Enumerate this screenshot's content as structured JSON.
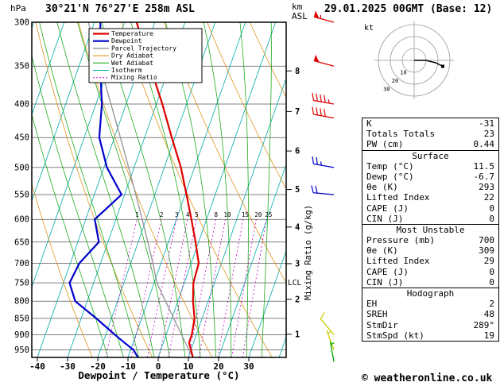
{
  "header": {
    "pressure_unit": "hPa",
    "station_title": "30°21'N 76°27'E 258m ASL",
    "altitude_axis_label": "km\nASL",
    "datetime": "29.01.2025 00GMT (Base: 12)"
  },
  "footer": {
    "copyright": "© weatheronline.co.uk"
  },
  "axes": {
    "pressure_ticks": [
      300,
      350,
      400,
      450,
      500,
      550,
      600,
      650,
      700,
      750,
      800,
      850,
      900,
      950
    ],
    "temp_ticks": [
      -40,
      -30,
      -20,
      -10,
      0,
      10,
      20,
      30
    ],
    "xlabel": "Dewpoint / Temperature (°C)",
    "km_ticks": [
      1,
      2,
      3,
      4,
      5,
      6,
      7,
      8
    ],
    "mixing_ratio_label": "Mixing Ratio (g/kg)",
    "mixing_ratio_values": [
      1,
      2,
      3,
      4,
      5,
      8,
      10,
      15,
      20,
      25
    ],
    "lcl_label": "LCL"
  },
  "legend": {
    "items": [
      {
        "label": "Temperature",
        "color": "#dd0000",
        "width": 2.2,
        "dashed": false
      },
      {
        "label": "Dewpoint",
        "color": "#0000cc",
        "width": 2.2,
        "dashed": false
      },
      {
        "label": "Parcel Trajectory",
        "color": "#999999",
        "width": 1.5,
        "dashed": false
      },
      {
        "label": "Dry Adiabat",
        "color": "#dd8800",
        "width": 1,
        "dashed": false
      },
      {
        "label": "Wet Adiabat",
        "color": "#00a000",
        "width": 1,
        "dashed": false
      },
      {
        "label": "Isotherm",
        "color": "#00aaaa",
        "width": 1,
        "dashed": false
      },
      {
        "label": "Mixing Ratio",
        "color": "#cc00cc",
        "width": 1,
        "dashed": true
      }
    ]
  },
  "colors": {
    "temperature": "#dd0000",
    "dewpoint": "#0000cc",
    "parcel": "#999999",
    "dry_adiabat": "#dd8800",
    "wet_adiabat": "#00a000",
    "isotherm": "#00aaaa",
    "mixing_ratio": "#cc00cc",
    "grid": "#000000"
  },
  "chart_data": {
    "type": "line",
    "subtype": "skew-t-log-p-sounding",
    "title": "30°21'N 76°27'E 258m ASL",
    "xlabel": "Dewpoint / Temperature (°C)",
    "ylabel": "hPa",
    "pressure_range": [
      300,
      975
    ],
    "temp_axis_range": [
      -40,
      38
    ],
    "isotherm_step_c": 10,
    "pressure_levels": [
      975,
      950,
      925,
      900,
      850,
      800,
      750,
      700,
      650,
      600,
      550,
      500,
      450,
      400,
      350,
      300
    ],
    "series": [
      {
        "name": "Temperature",
        "color": "#dd0000",
        "values": [
          11.5,
          10.0,
          8.5,
          8.5,
          7.5,
          5.0,
          3.0,
          2.5,
          -1.0,
          -5.0,
          -9.5,
          -14.5,
          -21.0,
          -28.0,
          -36.5,
          -46.0
        ]
      },
      {
        "name": "Dewpoint",
        "color": "#0000cc",
        "values": [
          -6.7,
          -9.0,
          -13.0,
          -17.0,
          -25.0,
          -34.0,
          -38.0,
          -37.0,
          -33.0,
          -37.0,
          -31.0,
          -39.0,
          -45.0,
          -48.0,
          -53.0,
          -58.0
        ]
      },
      {
        "name": "Parcel Trajectory",
        "color": "#999999",
        "values": [
          11.5,
          9.4,
          7.2,
          5.1,
          0.6,
          -4.1,
          -9.1,
          -12.7,
          -16.8,
          -21.3,
          -26.3,
          -31.8,
          -38.0,
          -45.0,
          -53.0,
          -62.0
        ]
      }
    ],
    "lcl_pressure_hpa": 750,
    "mixing_ratio_lines_g_kg": [
      1,
      2,
      3,
      4,
      5,
      8,
      10,
      15,
      20,
      25
    ]
  },
  "wind_barbs": [
    {
      "pressure": 300,
      "dir": 285,
      "speed_kt": 55,
      "color": "#dd0000"
    },
    {
      "pressure": 350,
      "dir": 285,
      "speed_kt": 50,
      "color": "#dd0000"
    },
    {
      "pressure": 400,
      "dir": 280,
      "speed_kt": 45,
      "color": "#dd0000"
    },
    {
      "pressure": 420,
      "dir": 280,
      "speed_kt": 40,
      "color": "#dd0000"
    },
    {
      "pressure": 500,
      "dir": 280,
      "speed_kt": 25,
      "color": "#0000cc"
    },
    {
      "pressure": 550,
      "dir": 275,
      "speed_kt": 20,
      "color": "#0000cc"
    },
    {
      "pressure": 900,
      "dir": 320,
      "speed_kt": 10,
      "color": "#cccc00"
    },
    {
      "pressure": 950,
      "dir": 340,
      "speed_kt": 5,
      "color": "#cccc00"
    },
    {
      "pressure": 990,
      "dir": 350,
      "speed_kt": 5,
      "color": "#00aa00"
    }
  ],
  "hodograph": {
    "unit_label": "kt",
    "ring_spacing_kt": 10,
    "ring_labels": [
      10,
      20,
      30
    ],
    "trace_uv_kt": [
      [
        0,
        0
      ],
      [
        10,
        0
      ],
      [
        18,
        -2
      ],
      [
        24,
        -5
      ]
    ],
    "storm_dir_deg": 289,
    "storm_speed_kt": 19
  },
  "stats": {
    "sections": [
      {
        "rows": [
          {
            "label": "K",
            "value": "-31"
          },
          {
            "label": "Totals Totals",
            "value": "23"
          },
          {
            "label": "PW (cm)",
            "value": "0.44"
          }
        ]
      },
      {
        "header": "Surface",
        "rows": [
          {
            "label": "Temp (°C)",
            "value": "11.5"
          },
          {
            "label": "Dewp (°C)",
            "value": "-6.7"
          },
          {
            "label": "θe (K)",
            "value": "293"
          },
          {
            "label": "Lifted Index",
            "value": "22"
          },
          {
            "label": "CAPE (J)",
            "value": "0"
          },
          {
            "label": "CIN (J)",
            "value": "0"
          }
        ]
      },
      {
        "header": "Most Unstable",
        "rows": [
          {
            "label": "Pressure (mb)",
            "value": "700"
          },
          {
            "label": "θe (K)",
            "value": "309"
          },
          {
            "label": "Lifted Index",
            "value": "29"
          },
          {
            "label": "CAPE (J)",
            "value": "0"
          },
          {
            "label": "CIN (J)",
            "value": "0"
          }
        ]
      },
      {
        "header": "Hodograph",
        "rows": [
          {
            "label": "EH",
            "value": "2"
          },
          {
            "label": "SREH",
            "value": "48"
          },
          {
            "label": "StmDir",
            "value": "289°"
          },
          {
            "label": "StmSpd (kt)",
            "value": "19"
          }
        ]
      }
    ]
  }
}
